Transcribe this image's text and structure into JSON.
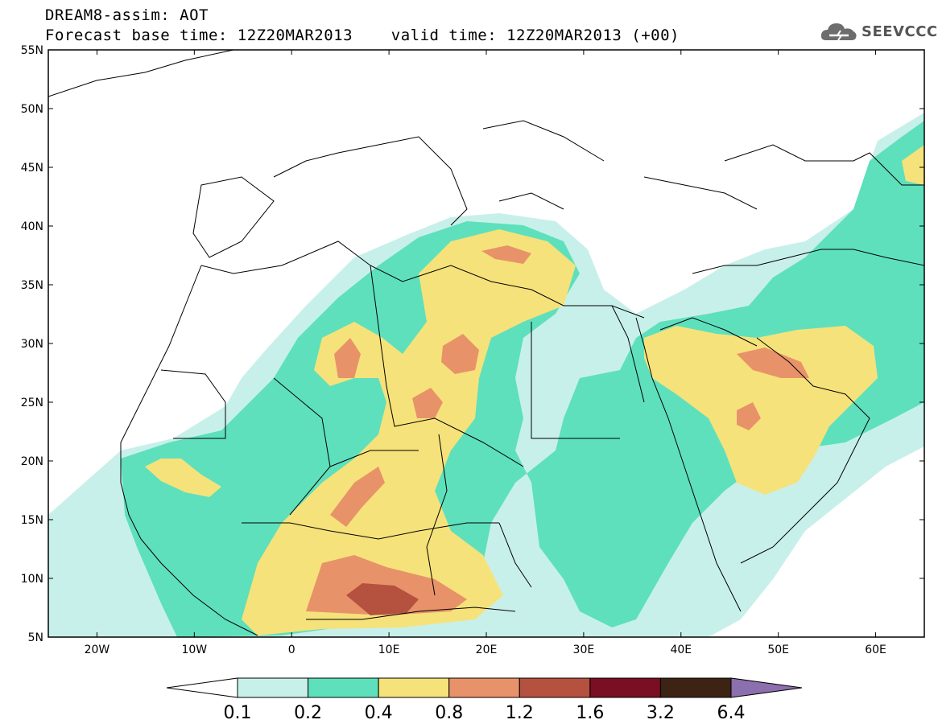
{
  "header": {
    "title_line1": "DREAM8-assim: AOT",
    "title_line2": "Forecast base time: 12Z20MAR2013    valid time: 12Z20MAR2013 (+00)"
  },
  "logo": {
    "text": "SEEVCCC",
    "icon": "cloud-logo-icon"
  },
  "map": {
    "lat_labels": [
      "55N",
      "50N",
      "45N",
      "40N",
      "35N",
      "30N",
      "25N",
      "20N",
      "15N",
      "10N",
      "5N"
    ],
    "lon_labels": [
      "20W",
      "10W",
      "0",
      "10E",
      "20E",
      "30E",
      "40E",
      "50E",
      "60E"
    ],
    "lat_range": [
      5,
      55
    ],
    "lon_range": [
      -25,
      65
    ]
  },
  "colorbar": {
    "labels": [
      "0.1",
      "0.2",
      "0.4",
      "0.8",
      "1.2",
      "1.6",
      "3.2",
      "6.4"
    ],
    "colors": [
      "#c8f0ea",
      "#5ee0bc",
      "#f6e27a",
      "#e8926a",
      "#b5513f",
      "#7a0e22",
      "#3d2313",
      "#8c6fae"
    ]
  }
}
